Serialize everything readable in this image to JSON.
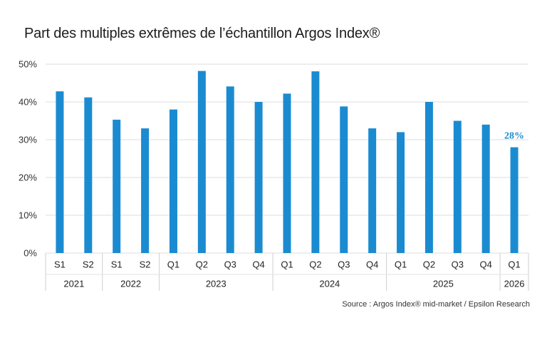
{
  "title": "Part des multiples extrêmes de l’échantillon Argos Index®",
  "source": "Source : Argos Index® mid-market / Epsilon Research",
  "chart_data": {
    "type": "bar",
    "categories": [
      "S1",
      "S2",
      "S1",
      "S2",
      "Q1",
      "Q2",
      "Q3",
      "Q4",
      "Q1",
      "Q2",
      "Q3",
      "Q4",
      "Q1",
      "Q2",
      "Q3",
      "Q4",
      "Q1"
    ],
    "values": [
      42.8,
      41.2,
      35.3,
      33.0,
      38.0,
      48.2,
      44.1,
      40.0,
      42.2,
      48.1,
      38.8,
      33.0,
      32.0,
      40.0,
      35.0,
      34.0,
      28.0
    ],
    "groups": [
      {
        "label": "2021",
        "count": 2
      },
      {
        "label": "2022",
        "count": 2
      },
      {
        "label": "2023",
        "count": 4
      },
      {
        "label": "2024",
        "count": 4
      },
      {
        "label": "2025",
        "count": 4
      },
      {
        "label": "2026",
        "count": 1
      }
    ],
    "ylim": [
      0,
      50
    ],
    "yticks": [
      0,
      10,
      20,
      30,
      40,
      50
    ],
    "ytick_suffix": "%",
    "grid": true,
    "bar_color": "#1b8bd1",
    "annotation": {
      "index": 16,
      "text": "28%",
      "color": "#1b8bd1"
    }
  }
}
